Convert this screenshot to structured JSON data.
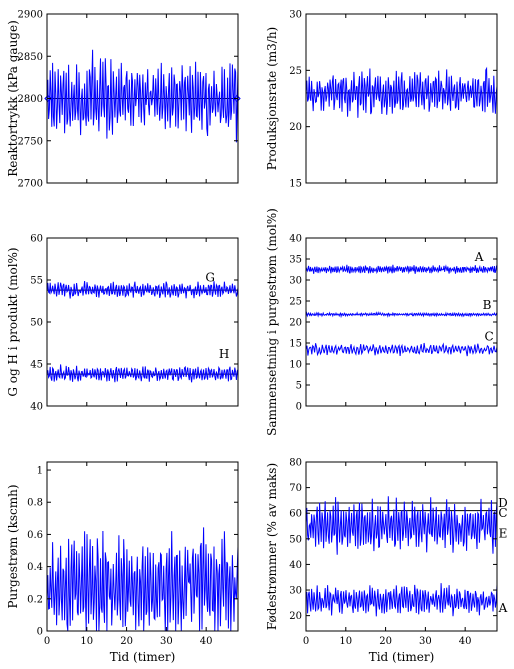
{
  "chart_data": [
    {
      "id": "reaktortrykk",
      "type": "line",
      "ylabel": "Reaktortrykk (kPa gauge)",
      "xlabel": "",
      "xlim": [
        0,
        48
      ],
      "ylim": [
        2700,
        2900
      ],
      "yticks": [
        2700,
        2750,
        2800,
        2850,
        2900
      ],
      "xticks": [
        0,
        10,
        20,
        30,
        40
      ],
      "show_xticklabels": false,
      "reference_lines": [
        2800
      ],
      "series": [
        {
          "mean": 2800,
          "amp": 42,
          "seed": 11,
          "points": 240
        }
      ],
      "annotations": []
    },
    {
      "id": "produksjonsrate",
      "type": "line",
      "ylabel": "Produksjonsrate (m3/h)",
      "xlabel": "",
      "xlim": [
        0,
        48
      ],
      "ylim": [
        15,
        30
      ],
      "yticks": [
        15,
        20,
        25,
        30
      ],
      "xticks": [
        0,
        10,
        20,
        30,
        40
      ],
      "show_xticklabels": false,
      "reference_lines": [
        23
      ],
      "series": [
        {
          "mean": 23,
          "amp": 1.9,
          "seed": 23,
          "points": 240
        }
      ],
      "annotations": []
    },
    {
      "id": "g-og-h",
      "type": "line",
      "ylabel": "G og H i produkt (mol%)",
      "xlabel": "",
      "xlim": [
        0,
        48
      ],
      "ylim": [
        40,
        60
      ],
      "yticks": [
        40,
        45,
        50,
        55,
        60
      ],
      "xticks": [
        0,
        10,
        20,
        30,
        40
      ],
      "show_xticklabels": false,
      "reference_lines": [
        53.8,
        43.8
      ],
      "series": [
        {
          "mean": 53.8,
          "amp": 0.9,
          "seed": 31,
          "points": 240
        },
        {
          "mean": 43.8,
          "amp": 0.9,
          "seed": 37,
          "points": 240
        }
      ],
      "annotations": [
        {
          "text": "G",
          "x": 41,
          "y": 55.3
        },
        {
          "text": "H",
          "x": 44.5,
          "y": 46.2
        }
      ]
    },
    {
      "id": "sammensetning",
      "type": "line",
      "ylabel": "Sammensetning i purgestrøm (mol%)",
      "xlabel": "",
      "xlim": [
        0,
        48
      ],
      "ylim": [
        0,
        40
      ],
      "yticks": [
        0,
        5,
        10,
        15,
        20,
        25,
        30,
        35,
        40
      ],
      "xticks": [
        0,
        10,
        20,
        30,
        40
      ],
      "show_xticklabels": false,
      "reference_lines": [],
      "series": [
        {
          "mean": 32.5,
          "amp": 0.9,
          "seed": 41,
          "points": 300
        },
        {
          "mean": 21.8,
          "amp": 0.35,
          "seed": 43,
          "points": 300
        },
        {
          "mean": 13.5,
          "amp": 1.3,
          "seed": 47,
          "points": 200
        }
      ],
      "annotations": [
        {
          "text": "A",
          "x": 43.5,
          "y": 35.5
        },
        {
          "text": "B",
          "x": 45.5,
          "y": 24.0
        },
        {
          "text": "C",
          "x": 46.0,
          "y": 16.5
        }
      ]
    },
    {
      "id": "purgestrom",
      "type": "line",
      "ylabel": "Purgestrøm (kscmh)",
      "xlabel": "Tid (timer)",
      "xlim": [
        0,
        48
      ],
      "ylim": [
        0,
        1.05
      ],
      "yticks": [
        0,
        0.2,
        0.4,
        0.6,
        0.8,
        1
      ],
      "xticks": [
        0,
        10,
        20,
        30,
        40
      ],
      "show_xticklabels": true,
      "reference_lines": [],
      "series": [
        {
          "mean": 0.28,
          "amp": 0.32,
          "seed": 53,
          "points": 240,
          "min": 0.0
        }
      ],
      "annotations": []
    },
    {
      "id": "fodestrommer",
      "type": "line",
      "ylabel": "Fødestrømmer (% av maks)",
      "xlabel": "Tid (timer)",
      "xlim": [
        0,
        48
      ],
      "ylim": [
        14,
        80
      ],
      "yticks": [
        20,
        30,
        40,
        50,
        60,
        70,
        80
      ],
      "xticks": [
        0,
        10,
        20,
        30,
        40
      ],
      "show_xticklabels": true,
      "reference_lines": [
        64,
        61
      ],
      "series": [
        {
          "mean": 55,
          "amp": 10,
          "seed": 59,
          "points": 240
        },
        {
          "mean": 26,
          "amp": 5.5,
          "seed": 61,
          "points": 240
        }
      ],
      "annotations": [
        {
          "text": "D",
          "x": 49.5,
          "y": 64
        },
        {
          "text": "C",
          "x": 49.5,
          "y": 60
        },
        {
          "text": "E",
          "x": 49.5,
          "y": 52
        },
        {
          "text": "A",
          "x": 49.5,
          "y": 23
        }
      ]
    }
  ]
}
